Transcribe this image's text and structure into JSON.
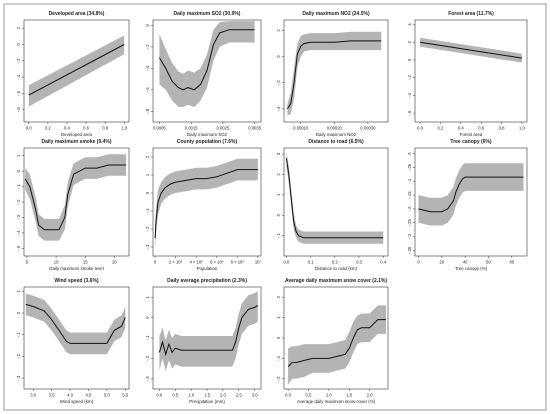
{
  "figure": {
    "panels": [
      {
        "title": "Developed area (34.8%)",
        "xlabel": "Developed area",
        "ylabel": "",
        "xticks": [
          "0.0",
          "0.2",
          "0.4",
          "0.6",
          "0.8",
          "1.0"
        ],
        "xtick_values": [
          0,
          0.2,
          0.4,
          0.6,
          0.8,
          1.0
        ],
        "yticks": [
          "-.8",
          "-.6",
          "-.4",
          "-.2",
          "0",
          "2"
        ],
        "ytick_values": [
          -0.8,
          -0.6,
          -0.4,
          -0.2,
          0,
          0.2
        ]
      },
      {
        "title": "Daily maximum SO2 (30.9%)",
        "xlabel": "Daily maximum SO2",
        "ylabel": "",
        "xticks": [
          "0.0005",
          "0.0015",
          "0.0025",
          "0.0035"
        ],
        "xtick_values": [
          0.0005,
          0.0015,
          0.0025,
          0.0035
        ],
        "yticks": [
          "-.8",
          "-.6",
          "-.4",
          "-.2",
          "0"
        ],
        "ytick_values": [
          -0.8,
          -0.6,
          -0.4,
          -0.2,
          0
        ]
      },
      {
        "title": "Daily maximum NO2 (24.5%)",
        "xlabel": "Daily maximum NO2",
        "ylabel": "",
        "xticks": [
          "0.00010",
          "0.00020",
          "0.00030"
        ],
        "xtick_values": [
          0.0001,
          0.0002,
          0.0003
        ],
        "yticks": [
          "-.4",
          "-.2",
          "0",
          "2"
        ],
        "ytick_values": [
          -0.4,
          -0.2,
          0,
          0.2
        ]
      },
      {
        "title": "Forest area (11.7%)",
        "xlabel": "Forest area",
        "ylabel": "",
        "xticks": [
          "0.0",
          "0.2",
          "0.4",
          "0.6",
          "0.8",
          "1.0"
        ],
        "xtick_values": [
          0,
          0.2,
          0.4,
          0.6,
          0.8,
          1.0
        ],
        "yticks": [
          "-.6",
          "-.4",
          "-.2",
          "0",
          "2",
          "4"
        ],
        "ytick_values": [
          -0.6,
          -0.4,
          -0.2,
          0,
          0.2,
          0.4
        ]
      },
      {
        "title": "Daily maximum smoke (9.4%)",
        "xlabel": "Daily maximum smoke level",
        "ylabel": "",
        "xticks": [
          "5",
          "10",
          "15",
          "20"
        ],
        "xtick_values": [
          5,
          10,
          15,
          20
        ],
        "yticks": [
          "-.5",
          "-.4",
          "-.3",
          "-.2",
          "-.1",
          "0",
          "1"
        ],
        "ytick_values": [
          -0.5,
          -0.4,
          -0.3,
          -0.2,
          -0.1,
          0,
          0.1
        ]
      },
      {
        "title": "County population (7.6%)",
        "xlabel": "Population",
        "ylabel": "",
        "xticks": [
          "0",
          "2 × 10⁶",
          "4 × 10⁶",
          "6 × 10⁶",
          "8 × 10⁶",
          "10⁷"
        ],
        "xtick_values": [
          0,
          2000000,
          4000000,
          6000000,
          8000000,
          10000000
        ],
        "yticks": [
          "-.3",
          "-.2",
          "-.1",
          "0",
          "1",
          "2"
        ],
        "ytick_values": [
          -0.3,
          -0.2,
          -0.1,
          0,
          0.1,
          0.2
        ]
      },
      {
        "title": "Distance to road (6.5%)",
        "xlabel": "Distance to road (km)",
        "ylabel": "",
        "xticks": [
          "0.0",
          "0.1",
          "0.2",
          "0.3",
          "0.4"
        ],
        "xtick_values": [
          0,
          0.1,
          0.2,
          0.3,
          0.4
        ],
        "yticks": [
          "-.1",
          "0",
          "1",
          "2",
          "3"
        ],
        "ytick_values": [
          -0.1,
          0,
          0.1,
          0.2,
          0.3
        ]
      },
      {
        "title": "Tree canopy (6%)",
        "xlabel": "Tree canopy (%)",
        "ylabel": "",
        "xticks": [
          "0",
          "20",
          "40",
          "60",
          "80"
        ],
        "xtick_values": [
          0,
          20,
          40,
          60,
          80
        ],
        "yticks": [
          "-.35",
          "-.3",
          "-.25",
          "-.2",
          "-.15",
          "-.1",
          "-.05",
          "0"
        ],
        "ytick_values": [
          -0.35,
          -0.3,
          -0.25,
          -0.2,
          -0.15,
          -0.1,
          -0.05,
          0
        ]
      },
      {
        "title": "Wind speed (3.6%)",
        "xlabel": "Wind speed (km)",
        "ylabel": "",
        "xticks": [
          "3.0",
          "3.5",
          "4.0",
          "4.5",
          "5.0",
          "5.5"
        ],
        "xtick_values": [
          3.0,
          3.5,
          4.0,
          4.5,
          5.0,
          5.5
        ],
        "yticks": [
          "-.3",
          "-.2",
          "-.1",
          "0",
          "1"
        ],
        "ytick_values": [
          -0.3,
          -0.2,
          -0.1,
          0,
          0.1
        ]
      },
      {
        "title": "Daily average precipitation (2.3%)",
        "xlabel": "Precipitation (mm)",
        "ylabel": "",
        "xticks": [
          "0.0",
          "0.5",
          "1.0",
          "1.5",
          "2.0",
          "2.5",
          "3.0"
        ],
        "xtick_values": [
          0,
          0.5,
          1.0,
          1.5,
          2.0,
          2.5,
          3.0
        ],
        "yticks": [
          "-.3",
          "-.2",
          "-.1",
          "0",
          "1"
        ],
        "ytick_values": [
          -0.3,
          -0.2,
          -0.1,
          0,
          0.1
        ]
      },
      {
        "title": "Average daily maximum snow cover (2.1%)",
        "xlabel": "Average daily maximum snow cover (%)",
        "ylabel": "",
        "xticks": [
          "0.0",
          "0.5",
          "1.0",
          "1.5",
          "2.0"
        ],
        "xtick_values": [
          0,
          0.5,
          1.0,
          1.5,
          2.0
        ],
        "yticks": [
          "-.2",
          "-.1",
          "0",
          "1",
          "2"
        ],
        "ytick_values": [
          -0.2,
          -0.1,
          0,
          0.1,
          0.2
        ]
      }
    ]
  },
  "chart_data": [
    {
      "type": "line",
      "title": "Developed area (34.8%)",
      "xlabel": "Developed area",
      "ylabel": "",
      "xlim": [
        -0.05,
        1.05
      ],
      "ylim": [
        -0.95,
        0.3
      ],
      "grid": false,
      "x": [
        0,
        1
      ],
      "y": [
        -0.62,
        0.0
      ],
      "band_upper": [
        -0.5,
        0.11
      ],
      "band_lower": [
        -0.76,
        -0.12
      ]
    },
    {
      "type": "line",
      "title": "Daily maximum SO2 (30.9%)",
      "xlabel": "Daily maximum SO2",
      "ylabel": "",
      "xlim": [
        0.0003,
        0.0037
      ],
      "ylim": [
        -0.9,
        0.05
      ],
      "grid": false,
      "x": [
        0.0005,
        0.0007,
        0.0009,
        0.0011,
        0.00125,
        0.0014,
        0.0016,
        0.0018,
        0.002,
        0.0022,
        0.0024,
        0.0027,
        0.003,
        0.0035
      ],
      "y": [
        -0.3,
        -0.4,
        -0.52,
        -0.58,
        -0.6,
        -0.58,
        -0.6,
        -0.55,
        -0.42,
        -0.18,
        -0.07,
        -0.04,
        -0.04,
        -0.04
      ],
      "band_upper": [
        -0.08,
        -0.22,
        -0.35,
        -0.43,
        -0.45,
        -0.42,
        -0.44,
        -0.4,
        -0.27,
        -0.04,
        0.03,
        0.04,
        0.04,
        0.04
      ],
      "band_lower": [
        -0.55,
        -0.6,
        -0.7,
        -0.76,
        -0.76,
        -0.74,
        -0.76,
        -0.7,
        -0.58,
        -0.33,
        -0.2,
        -0.16,
        -0.16,
        -0.16
      ]
    },
    {
      "type": "line",
      "title": "Daily maximum NO2 (24.5%)",
      "xlabel": "Daily maximum NO2",
      "ylabel": "",
      "xlim": [
        5e-05,
        0.00036
      ],
      "ylim": [
        -0.5,
        0.28
      ],
      "grid": false,
      "x": [
        6e-05,
        7e-05,
        8e-05,
        9e-05,
        0.0001,
        0.00011,
        0.00013,
        0.00016,
        0.0002,
        0.00025,
        0.0003,
        0.00034
      ],
      "y": [
        -0.4,
        -0.36,
        -0.2,
        0.02,
        0.08,
        0.1,
        0.11,
        0.11,
        0.11,
        0.12,
        0.12,
        0.12
      ],
      "band_upper": [
        -0.36,
        -0.28,
        -0.08,
        0.1,
        0.16,
        0.17,
        0.18,
        0.18,
        0.18,
        0.19,
        0.19,
        0.19
      ],
      "band_lower": [
        -0.45,
        -0.44,
        -0.32,
        -0.08,
        0.0,
        0.04,
        0.05,
        0.05,
        0.05,
        0.05,
        0.05,
        0.05
      ]
    },
    {
      "type": "line",
      "title": "Forest area (11.7%)",
      "xlabel": "Forest area",
      "ylabel": "",
      "xlim": [
        -0.05,
        1.05
      ],
      "ylim": [
        -0.7,
        0.45
      ],
      "grid": false,
      "x": [
        0,
        1
      ],
      "y": [
        0.2,
        0.02
      ],
      "band_upper": [
        0.25,
        0.07
      ],
      "band_lower": [
        0.15,
        -0.03
      ]
    },
    {
      "type": "line",
      "title": "Daily maximum smoke (9.4%)",
      "xlabel": "Daily maximum smoke level",
      "ylabel": "",
      "xlim": [
        4.5,
        22.5
      ],
      "ylim": [
        -0.55,
        0.15
      ],
      "grid": false,
      "x": [
        4.7,
        5.5,
        6.5,
        7.0,
        8.0,
        9.0,
        10.5,
        11.5,
        12.0,
        13.0,
        15.0,
        17.0,
        19.0,
        22.0
      ],
      "y": [
        -0.05,
        -0.1,
        -0.25,
        -0.35,
        -0.38,
        -0.38,
        -0.38,
        -0.3,
        -0.15,
        -0.02,
        0.02,
        0.02,
        0.04,
        0.04
      ],
      "band_upper": [
        0.02,
        -0.02,
        -0.17,
        -0.28,
        -0.31,
        -0.31,
        -0.31,
        -0.22,
        -0.07,
        0.05,
        0.09,
        0.09,
        0.11,
        0.11
      ],
      "band_lower": [
        -0.12,
        -0.18,
        -0.33,
        -0.42,
        -0.45,
        -0.45,
        -0.45,
        -0.38,
        -0.23,
        -0.09,
        -0.05,
        -0.05,
        -0.03,
        -0.03
      ]
    },
    {
      "type": "line",
      "title": "County population (7.6%)",
      "xlabel": "Population",
      "ylabel": "",
      "xlim": [
        -200000,
        10300000
      ],
      "ylim": [
        -0.35,
        0.25
      ],
      "grid": false,
      "x": [
        0,
        100000,
        300000,
        600000,
        1000000,
        1500000,
        2000000,
        3000000,
        4000000,
        5000000,
        6000000,
        7000000,
        8000000,
        9000000,
        10000000
      ],
      "y": [
        -0.25,
        -0.15,
        -0.05,
        0.0,
        0.03,
        0.05,
        0.06,
        0.07,
        0.08,
        0.08,
        0.09,
        0.11,
        0.13,
        0.13,
        0.13
      ],
      "band_upper": [
        -0.18,
        -0.08,
        0.02,
        0.06,
        0.09,
        0.11,
        0.12,
        0.13,
        0.14,
        0.14,
        0.15,
        0.17,
        0.19,
        0.19,
        0.19
      ],
      "band_lower": [
        -0.32,
        -0.22,
        -0.12,
        -0.06,
        -0.03,
        -0.01,
        0.0,
        0.01,
        0.02,
        0.02,
        0.03,
        0.05,
        0.07,
        0.07,
        0.07
      ]
    },
    {
      "type": "line",
      "title": "Distance to road (6.5%)",
      "xlabel": "Distance to road (km)",
      "ylabel": "",
      "xlim": [
        -0.01,
        0.42
      ],
      "ylim": [
        -0.2,
        0.33
      ],
      "grid": false,
      "x": [
        0.0,
        0.01,
        0.02,
        0.03,
        0.04,
        0.05,
        0.07,
        0.1,
        0.2,
        0.3,
        0.4
      ],
      "y": [
        0.28,
        0.2,
        0.08,
        -0.03,
        -0.08,
        -0.1,
        -0.11,
        -0.11,
        -0.11,
        -0.11,
        -0.11
      ],
      "band_upper": [
        0.31,
        0.24,
        0.12,
        0.01,
        -0.05,
        -0.07,
        -0.08,
        -0.08,
        -0.08,
        -0.08,
        -0.08
      ],
      "band_lower": [
        0.24,
        0.16,
        0.04,
        -0.07,
        -0.11,
        -0.13,
        -0.14,
        -0.14,
        -0.14,
        -0.14,
        -0.14
      ]
    },
    {
      "type": "line",
      "title": "Tree canopy (6%)",
      "xlabel": "Tree canopy (%)",
      "ylabel": "",
      "xlim": [
        -3,
        93
      ],
      "ylim": [
        -0.37,
        0.02
      ],
      "grid": false,
      "x": [
        0,
        10,
        20,
        25,
        30,
        32,
        35,
        38,
        40,
        50,
        60,
        70,
        80,
        90
      ],
      "y": [
        -0.2,
        -0.21,
        -0.21,
        -0.2,
        -0.17,
        -0.14,
        -0.11,
        -0.09,
        -0.085,
        -0.085,
        -0.085,
        -0.085,
        -0.085,
        -0.085
      ],
      "band_upper": [
        -0.15,
        -0.16,
        -0.16,
        -0.15,
        -0.12,
        -0.09,
        -0.06,
        -0.04,
        -0.035,
        -0.035,
        -0.035,
        -0.035,
        -0.035,
        -0.035
      ],
      "band_lower": [
        -0.25,
        -0.26,
        -0.26,
        -0.25,
        -0.22,
        -0.19,
        -0.16,
        -0.14,
        -0.135,
        -0.135,
        -0.135,
        -0.135,
        -0.135,
        -0.135
      ]
    },
    {
      "type": "line",
      "title": "Wind speed (3.6%)",
      "xlabel": "Wind speed (km)",
      "ylabel": "",
      "xlim": [
        2.75,
        5.6
      ],
      "ylim": [
        -0.35,
        0.12
      ],
      "grid": false,
      "x": [
        2.8,
        3.0,
        3.3,
        3.5,
        3.7,
        3.9,
        4.0,
        4.2,
        4.5,
        4.8,
        5.0,
        5.2,
        5.4,
        5.5
      ],
      "y": [
        0.04,
        0.03,
        0.01,
        -0.03,
        -0.08,
        -0.13,
        -0.14,
        -0.14,
        -0.14,
        -0.14,
        -0.14,
        -0.08,
        -0.06,
        -0.02
      ],
      "band_upper": [
        0.09,
        0.08,
        0.06,
        0.02,
        -0.03,
        -0.08,
        -0.09,
        -0.09,
        -0.09,
        -0.09,
        -0.09,
        -0.03,
        -0.01,
        0.03
      ],
      "band_lower": [
        -0.01,
        -0.02,
        -0.04,
        -0.08,
        -0.13,
        -0.18,
        -0.19,
        -0.19,
        -0.19,
        -0.19,
        -0.19,
        -0.13,
        -0.11,
        -0.07
      ]
    },
    {
      "type": "line",
      "title": "Daily average precipitation (2.3%)",
      "xlabel": "Precipitation (mm)",
      "ylabel": "",
      "xlim": [
        -0.2,
        3.2
      ],
      "ylim": [
        -0.35,
        0.15
      ],
      "grid": false,
      "x": [
        0.0,
        0.1,
        0.2,
        0.3,
        0.4,
        0.5,
        0.7,
        1.0,
        1.5,
        2.0,
        2.3,
        2.4,
        2.5,
        2.6,
        2.8,
        3.0,
        3.1
      ],
      "y": [
        -0.17,
        -0.12,
        -0.18,
        -0.13,
        -0.17,
        -0.15,
        -0.16,
        -0.16,
        -0.16,
        -0.16,
        -0.16,
        -0.12,
        -0.05,
        0.0,
        0.04,
        0.05,
        0.06
      ],
      "band_upper": [
        -0.09,
        -0.05,
        -0.11,
        -0.06,
        -0.1,
        -0.08,
        -0.09,
        -0.09,
        -0.09,
        -0.09,
        -0.09,
        -0.05,
        0.02,
        0.07,
        0.11,
        0.12,
        0.13
      ],
      "band_lower": [
        -0.26,
        -0.2,
        -0.26,
        -0.21,
        -0.25,
        -0.23,
        -0.24,
        -0.24,
        -0.24,
        -0.24,
        -0.24,
        -0.2,
        -0.13,
        -0.08,
        -0.04,
        -0.03,
        -0.02
      ]
    },
    {
      "type": "line",
      "title": "Average daily maximum snow cover (2.1%)",
      "xlabel": "Average daily maximum snow cover (%)",
      "ylabel": "",
      "xlim": [
        -0.1,
        2.45
      ],
      "ylim": [
        -0.25,
        0.25
      ],
      "grid": false,
      "x": [
        0.0,
        0.1,
        0.2,
        0.4,
        0.6,
        0.8,
        1.0,
        1.2,
        1.4,
        1.5,
        1.6,
        1.7,
        1.8,
        2.0,
        2.2,
        2.4
      ],
      "y": [
        -0.14,
        -0.12,
        -0.12,
        -0.11,
        -0.1,
        -0.1,
        -0.1,
        -0.09,
        -0.08,
        -0.05,
        0.0,
        0.04,
        0.05,
        0.05,
        0.09,
        0.09
      ],
      "band_upper": [
        -0.05,
        -0.04,
        -0.04,
        -0.03,
        -0.03,
        -0.03,
        -0.03,
        -0.02,
        -0.01,
        0.03,
        0.08,
        0.11,
        0.12,
        0.12,
        0.16,
        0.16
      ],
      "band_lower": [
        -0.23,
        -0.2,
        -0.2,
        -0.19,
        -0.17,
        -0.17,
        -0.17,
        -0.16,
        -0.15,
        -0.12,
        -0.07,
        -0.03,
        -0.02,
        -0.02,
        0.02,
        0.02
      ]
    }
  ],
  "style": {
    "band_color": "#b4b4b4",
    "line_color": "#111111",
    "axis_color": "#333333",
    "text_color": "#222222",
    "frame_color": "#999999"
  }
}
